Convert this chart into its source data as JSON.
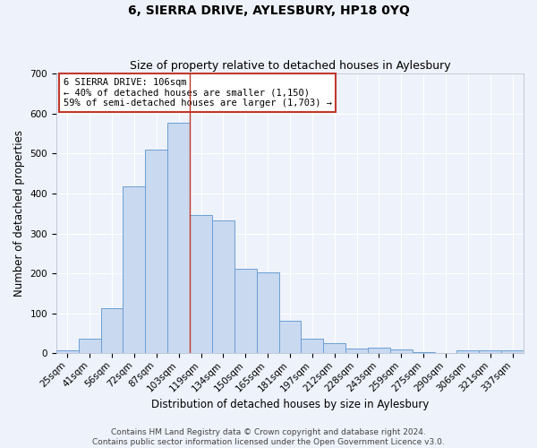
{
  "title": "6, SIERRA DRIVE, AYLESBURY, HP18 0YQ",
  "subtitle": "Size of property relative to detached houses in Aylesbury",
  "xlabel": "Distribution of detached houses by size in Aylesbury",
  "ylabel": "Number of detached properties",
  "bar_labels": [
    "25sqm",
    "41sqm",
    "56sqm",
    "72sqm",
    "87sqm",
    "103sqm",
    "119sqm",
    "134sqm",
    "150sqm",
    "165sqm",
    "181sqm",
    "197sqm",
    "212sqm",
    "228sqm",
    "243sqm",
    "259sqm",
    "275sqm",
    "290sqm",
    "306sqm",
    "321sqm",
    "337sqm"
  ],
  "bar_values": [
    8,
    36,
    113,
    418,
    510,
    578,
    346,
    332,
    212,
    203,
    82,
    37,
    25,
    12,
    15,
    10,
    3,
    0,
    8,
    8,
    7
  ],
  "bar_color": "#c9d9f0",
  "bar_edge_color": "#6b9fd4",
  "ylim": [
    0,
    700
  ],
  "yticks": [
    0,
    100,
    200,
    300,
    400,
    500,
    600,
    700
  ],
  "property_line_bin_index": 5,
  "property_line_color": "#c0392b",
  "annotation_title": "6 SIERRA DRIVE: 106sqm",
  "annotation_line1": "← 40% of detached houses are smaller (1,150)",
  "annotation_line2": "59% of semi-detached houses are larger (1,703) →",
  "annotation_box_color": "#ffffff",
  "annotation_box_edge": "#c0392b",
  "footer1": "Contains HM Land Registry data © Crown copyright and database right 2024.",
  "footer2": "Contains public sector information licensed under the Open Government Licence v3.0.",
  "background_color": "#eef2fa",
  "grid_color": "#ffffff",
  "title_fontsize": 10,
  "subtitle_fontsize": 9,
  "xlabel_fontsize": 8.5,
  "ylabel_fontsize": 8.5,
  "tick_fontsize": 7.5,
  "annotation_fontsize": 7.5,
  "footer_fontsize": 6.5
}
